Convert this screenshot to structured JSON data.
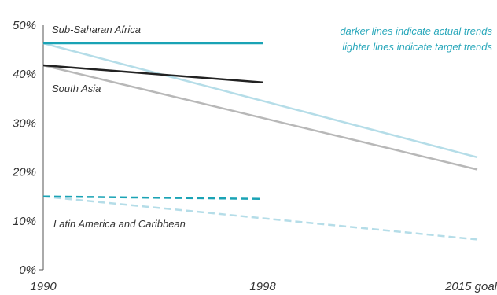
{
  "chart_data": {
    "type": "line",
    "x": [
      "1990",
      "1998",
      "2015 goal"
    ],
    "ylim": [
      0,
      50
    ],
    "yticks": [
      "0%",
      "10%",
      "20%",
      "30%",
      "40%",
      "50%"
    ],
    "notes": {
      "actual": "darker lines indicate actual trends",
      "target": "lighter lines indicate target trends"
    },
    "series": [
      {
        "name": "Sub-Saharan Africa",
        "kind": "actual",
        "style": "solid",
        "color": "#1aa3b5",
        "points": [
          {
            "x": "1990",
            "y": 46.3
          },
          {
            "x": "1998",
            "y": 46.3
          }
        ]
      },
      {
        "name": "Sub-Saharan Africa",
        "kind": "target",
        "style": "solid",
        "color": "#b5dde8",
        "points": [
          {
            "x": "1990",
            "y": 46.3
          },
          {
            "x": "2015 goal",
            "y": 23.0
          }
        ]
      },
      {
        "name": "South Asia",
        "kind": "actual",
        "style": "solid",
        "color": "#222222",
        "points": [
          {
            "x": "1990",
            "y": 41.8
          },
          {
            "x": "1998",
            "y": 38.3
          }
        ]
      },
      {
        "name": "South Asia",
        "kind": "target",
        "style": "solid",
        "color": "#b8b8b8",
        "points": [
          {
            "x": "1990",
            "y": 41.8
          },
          {
            "x": "2015 goal",
            "y": 20.5
          }
        ]
      },
      {
        "name": "Latin America and Caribbean",
        "kind": "actual",
        "style": "dashed",
        "color": "#1aa3b5",
        "points": [
          {
            "x": "1990",
            "y": 15.0
          },
          {
            "x": "1998",
            "y": 14.5
          }
        ]
      },
      {
        "name": "Latin America and Caribbean",
        "kind": "target",
        "style": "dashed",
        "color": "#b5dde8",
        "points": [
          {
            "x": "1990",
            "y": 15.0
          },
          {
            "x": "2015 goal",
            "y": 6.2
          }
        ]
      }
    ],
    "labels": [
      {
        "text": "Sub-Saharan Africa",
        "near": "Sub-Saharan Africa"
      },
      {
        "text": "South Asia",
        "near": "South Asia"
      },
      {
        "text": "Latin America and Caribbean",
        "near": "Latin America and Caribbean"
      }
    ]
  }
}
